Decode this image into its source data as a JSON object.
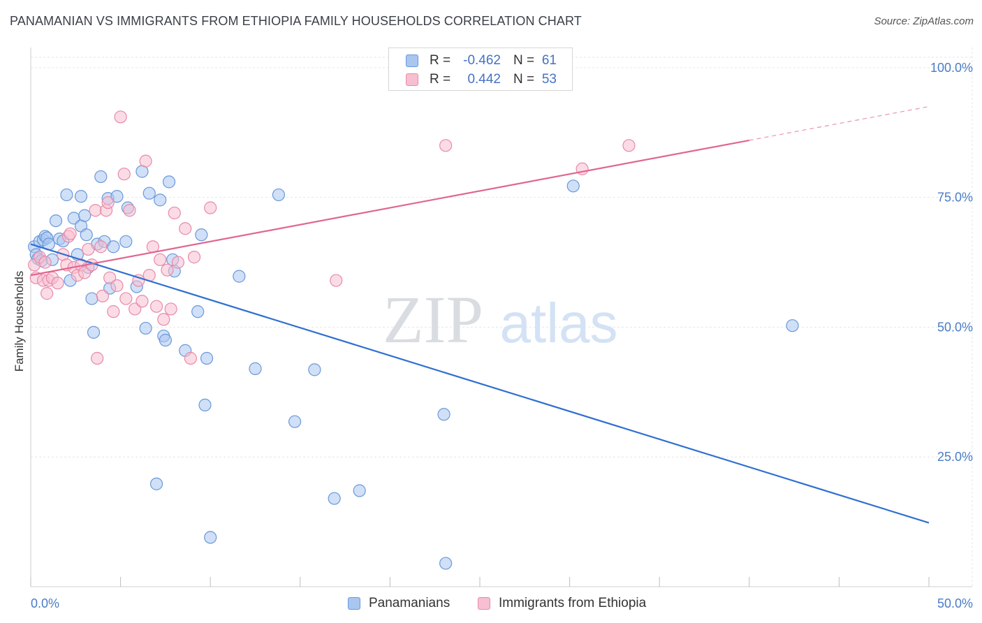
{
  "title": "PANAMANIAN VS IMMIGRANTS FROM ETHIOPIA FAMILY HOUSEHOLDS CORRELATION CHART",
  "source": "Source: ZipAtlas.com",
  "watermark": {
    "zip": "ZIP",
    "atlas": "atlas"
  },
  "stats": [
    {
      "r_label": "R =",
      "r_value": "-0.462",
      "n_label": "N =",
      "n_value": "61",
      "color": "#a9c6f0",
      "border": "#6a98da"
    },
    {
      "r_label": "R =",
      "r_value": "0.442",
      "n_label": "N =",
      "n_value": "53",
      "color": "#f7bfd0",
      "border": "#e88aa8"
    }
  ],
  "legend": [
    {
      "label": "Panamanians",
      "color": "#a9c6f0",
      "border": "#6a98da"
    },
    {
      "label": "Immigrants from Ethiopia",
      "color": "#f7bfd0",
      "border": "#e88aa8"
    }
  ],
  "chart_data": {
    "type": "scatter",
    "title": "PANAMANIAN VS IMMIGRANTS FROM ETHIOPIA FAMILY HOUSEHOLDS CORRELATION CHART",
    "xlabel": "",
    "ylabel": "Family Households",
    "xlim": [
      0,
      50
    ],
    "ylim": [
      0,
      102
    ],
    "x_tick_labels": {
      "left": "0.0%",
      "right": "50.0%"
    },
    "x_minor_ticks": [
      0,
      5,
      10,
      15,
      20,
      25,
      30,
      35,
      40,
      45,
      50
    ],
    "y_ticks": [
      {
        "value": 100,
        "label": "100.0%"
      },
      {
        "value": 75,
        "label": "75.0%"
      },
      {
        "value": 50,
        "label": "50.0%"
      },
      {
        "value": 25,
        "label": "25.0%"
      }
    ],
    "grid": true,
    "series": [
      {
        "name": "Panamanians",
        "color": "#6a98da",
        "fill": "#a9c6f0",
        "trend": {
          "x0": 0,
          "y0": 66.0,
          "x1": 50,
          "y1": 12.3,
          "dash_from_x": 50
        },
        "points": [
          [
            0.2,
            65.5
          ],
          [
            0.3,
            64.0
          ],
          [
            0.4,
            63.2
          ],
          [
            0.5,
            66.5
          ],
          [
            0.6,
            62.8
          ],
          [
            0.7,
            66.8
          ],
          [
            0.8,
            67.5
          ],
          [
            0.9,
            67.2
          ],
          [
            1.0,
            66.0
          ],
          [
            1.2,
            63.0
          ],
          [
            1.4,
            70.5
          ],
          [
            1.6,
            67.0
          ],
          [
            1.8,
            66.6
          ],
          [
            2.0,
            75.5
          ],
          [
            2.2,
            59.0
          ],
          [
            2.4,
            71.0
          ],
          [
            2.6,
            64.0
          ],
          [
            2.8,
            69.5
          ],
          [
            2.8,
            75.2
          ],
          [
            3.0,
            71.5
          ],
          [
            3.1,
            67.8
          ],
          [
            3.2,
            61.5
          ],
          [
            3.4,
            55.5
          ],
          [
            3.5,
            49.0
          ],
          [
            3.7,
            66.0
          ],
          [
            3.9,
            79.0
          ],
          [
            4.1,
            66.5
          ],
          [
            4.3,
            74.8
          ],
          [
            4.4,
            57.5
          ],
          [
            4.6,
            65.5
          ],
          [
            4.8,
            75.2
          ],
          [
            5.3,
            66.5
          ],
          [
            5.4,
            73.0
          ],
          [
            5.9,
            57.8
          ],
          [
            6.2,
            80.0
          ],
          [
            6.4,
            49.8
          ],
          [
            6.6,
            75.8
          ],
          [
            7.0,
            19.8
          ],
          [
            7.2,
            74.5
          ],
          [
            7.4,
            48.3
          ],
          [
            7.5,
            47.5
          ],
          [
            7.7,
            78.0
          ],
          [
            7.9,
            63.0
          ],
          [
            8.0,
            60.8
          ],
          [
            8.6,
            45.5
          ],
          [
            9.3,
            53.0
          ],
          [
            9.5,
            67.8
          ],
          [
            9.7,
            35.0
          ],
          [
            9.8,
            44.0
          ],
          [
            10.0,
            9.5
          ],
          [
            11.6,
            59.8
          ],
          [
            12.5,
            42.0
          ],
          [
            13.8,
            75.5
          ],
          [
            14.7,
            31.8
          ],
          [
            15.8,
            41.8
          ],
          [
            16.9,
            17.0
          ],
          [
            18.3,
            18.5
          ],
          [
            23.0,
            33.2
          ],
          [
            23.1,
            4.5
          ],
          [
            30.2,
            77.2
          ],
          [
            42.4,
            50.3
          ]
        ]
      },
      {
        "name": "Immigrants from Ethiopia",
        "color": "#e88aa8",
        "fill": "#f7bfd0",
        "trend": {
          "x0": 0,
          "y0": 60.0,
          "x1": 40,
          "y1": 86.0,
          "dash_from_x": 40,
          "dash_to_x": 50,
          "dash_to_y": 92.5
        },
        "points": [
          [
            0.2,
            62.0
          ],
          [
            0.3,
            59.5
          ],
          [
            0.5,
            63.5
          ],
          [
            0.7,
            59.0
          ],
          [
            0.8,
            62.5
          ],
          [
            0.9,
            56.5
          ],
          [
            1.0,
            59.0
          ],
          [
            1.2,
            59.5
          ],
          [
            1.5,
            58.5
          ],
          [
            1.8,
            64.0
          ],
          [
            2.0,
            62.0
          ],
          [
            2.1,
            67.5
          ],
          [
            2.2,
            68.0
          ],
          [
            2.4,
            61.5
          ],
          [
            2.6,
            60.0
          ],
          [
            2.8,
            62.0
          ],
          [
            3.0,
            60.5
          ],
          [
            3.2,
            65.0
          ],
          [
            3.4,
            62.0
          ],
          [
            3.6,
            72.5
          ],
          [
            3.7,
            44.0
          ],
          [
            3.9,
            65.5
          ],
          [
            4.0,
            56.0
          ],
          [
            4.2,
            72.5
          ],
          [
            4.3,
            74.0
          ],
          [
            4.4,
            59.5
          ],
          [
            4.6,
            53.0
          ],
          [
            4.8,
            58.0
          ],
          [
            5.0,
            90.5
          ],
          [
            5.2,
            79.5
          ],
          [
            5.3,
            55.5
          ],
          [
            5.5,
            72.5
          ],
          [
            5.8,
            53.5
          ],
          [
            6.0,
            59.0
          ],
          [
            6.2,
            55.0
          ],
          [
            6.4,
            82.0
          ],
          [
            6.6,
            60.0
          ],
          [
            6.8,
            65.5
          ],
          [
            7.0,
            54.0
          ],
          [
            7.2,
            63.0
          ],
          [
            7.4,
            51.5
          ],
          [
            7.6,
            61.0
          ],
          [
            7.8,
            53.5
          ],
          [
            8.0,
            72.0
          ],
          [
            8.2,
            62.5
          ],
          [
            8.6,
            69.0
          ],
          [
            8.9,
            44.0
          ],
          [
            9.1,
            63.5
          ],
          [
            10.0,
            73.0
          ],
          [
            17.0,
            59.0
          ],
          [
            23.1,
            85.0
          ],
          [
            30.7,
            80.5
          ],
          [
            33.3,
            85.0
          ]
        ]
      }
    ]
  }
}
